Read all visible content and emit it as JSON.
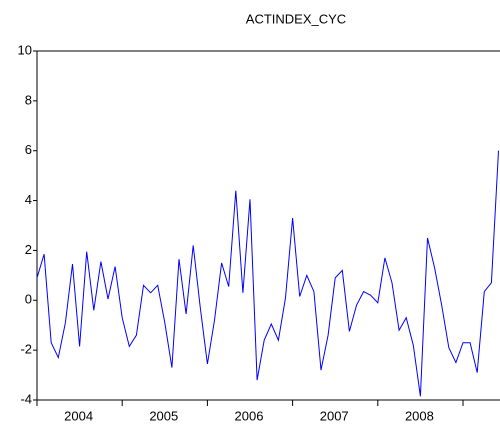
{
  "chart_data": {
    "type": "line",
    "title": "ACTINDEX_CYC",
    "categories": [
      null,
      null,
      null,
      null,
      null,
      null,
      "2004",
      null,
      null,
      null,
      null,
      null,
      null,
      null,
      null,
      null,
      null,
      null,
      "2005",
      null,
      null,
      null,
      null,
      null,
      null,
      null,
      null,
      null,
      null,
      null,
      "2006",
      null,
      null,
      null,
      null,
      null,
      null,
      null,
      null,
      null,
      null,
      null,
      "2007",
      null,
      null,
      null,
      null,
      null,
      null,
      null,
      null,
      null,
      null,
      null,
      "2008",
      null,
      null,
      null,
      null,
      null,
      null,
      null,
      null,
      null,
      null,
      null
    ],
    "series": [
      {
        "name": "ACTINDEX_CYC",
        "color": "#0000ff",
        "values": [
          0.9,
          1.85,
          -1.7,
          -2.3,
          -0.9,
          1.45,
          -1.85,
          1.95,
          -0.4,
          1.55,
          0.05,
          1.35,
          -0.7,
          -1.85,
          -1.4,
          0.6,
          0.3,
          0.6,
          -0.9,
          -2.7,
          1.65,
          -0.55,
          2.2,
          -0.3,
          -2.55,
          -0.8,
          1.5,
          0.55,
          4.4,
          0.3,
          4.05,
          -3.2,
          -1.6,
          -0.95,
          -1.6,
          0.1,
          3.3,
          0.15,
          1.0,
          0.35,
          -2.8,
          -1.4,
          0.9,
          1.2,
          -1.25,
          -0.2,
          0.35,
          0.2,
          -0.1,
          1.7,
          0.7,
          -1.2,
          -0.7,
          -1.8,
          -3.85,
          2.5,
          1.3,
          -0.2,
          -1.9,
          -2.5,
          -1.7,
          -1.7,
          -2.9,
          0.35,
          0.7,
          6.0
        ]
      }
    ],
    "ylim": [
      -4,
      10
    ],
    "yticks": [
      -4,
      -2,
      0,
      2,
      4,
      6,
      8,
      10
    ]
  }
}
